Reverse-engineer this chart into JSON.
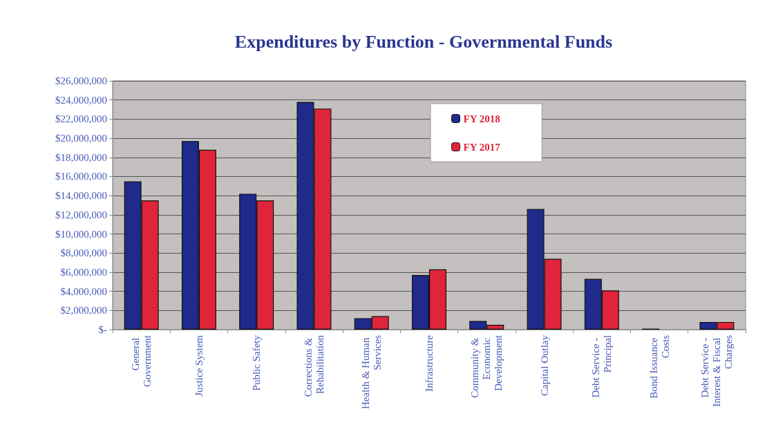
{
  "chart_data": {
    "type": "bar",
    "title": "Expenditures by Function - Governmental Funds",
    "categories": [
      "General Government",
      "Justice System",
      "Public Safety",
      "Corrections & Rehabilitation",
      "Health & Human Services",
      "Infrastructure",
      "Community & Economic Development",
      "Capital Outlay",
      "Debt Service - Principal",
      "Bond Issuance Costs",
      "Debt Service - Interest & Fiscal Charges"
    ],
    "series": [
      {
        "name": "FY 2018",
        "color": "#1f2a8a",
        "values": [
          15500000,
          19700000,
          14200000,
          23800000,
          1200000,
          5700000,
          900000,
          12600000,
          5300000,
          100000,
          800000
        ]
      },
      {
        "name": "FY 2017",
        "color": "#e0243a",
        "values": [
          13500000,
          18800000,
          13500000,
          23100000,
          1400000,
          6300000,
          500000,
          7400000,
          4100000,
          null,
          800000
        ]
      }
    ],
    "ylim": [
      0,
      26000000
    ],
    "yticks": [
      {
        "value": 0,
        "label": "$-"
      },
      {
        "value": 2000000,
        "label": "$2,000,000"
      },
      {
        "value": 4000000,
        "label": "$4,000,000"
      },
      {
        "value": 6000000,
        "label": "$6,000,000"
      },
      {
        "value": 8000000,
        "label": "$8,000,000"
      },
      {
        "value": 10000000,
        "label": "$10,000,000"
      },
      {
        "value": 12000000,
        "label": "$12,000,000"
      },
      {
        "value": 14000000,
        "label": "$14,000,000"
      },
      {
        "value": 16000000,
        "label": "$16,000,000"
      },
      {
        "value": 18000000,
        "label": "$18,000,000"
      },
      {
        "value": 20000000,
        "label": "$20,000,000"
      },
      {
        "value": 22000000,
        "label": "$22,000,000"
      },
      {
        "value": 24000000,
        "label": "$24,000,000"
      },
      {
        "value": 26000000,
        "label": "$26,000,000"
      }
    ],
    "grid": "y",
    "legend": "top"
  }
}
